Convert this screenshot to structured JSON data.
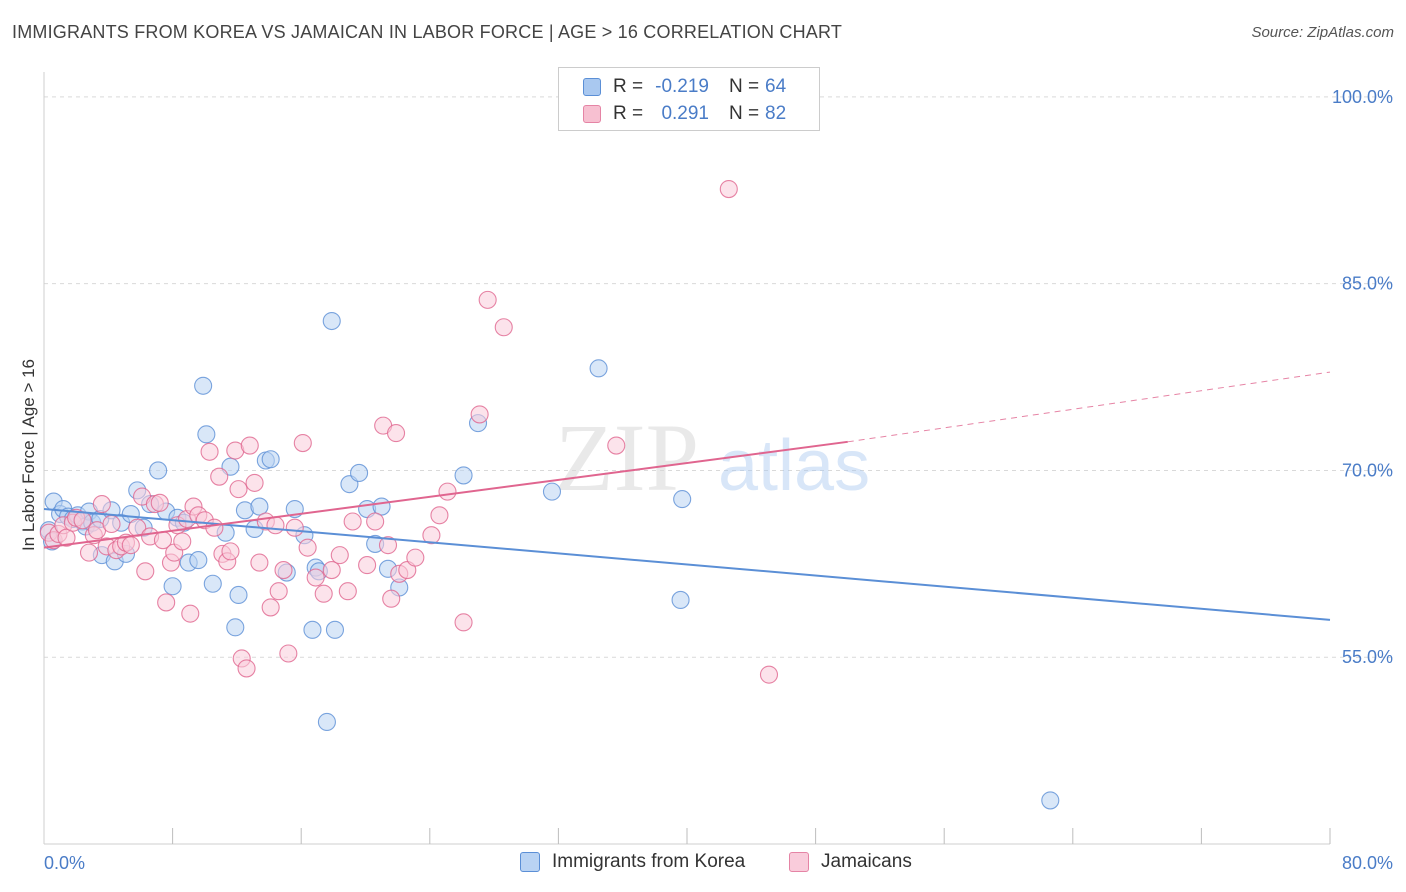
{
  "title": "IMMIGRANTS FROM KOREA VS JAMAICAN IN LABOR FORCE | AGE > 16 CORRELATION CHART",
  "source": "Source: ZipAtlas.com",
  "watermark": {
    "zip": "ZIP",
    "atlas": "atlas"
  },
  "legend": {
    "rows": [
      {
        "r_label": "R =",
        "r_value": "-0.219",
        "n_label": "N =",
        "n_value": "64",
        "fill": "#a9c8f0",
        "stroke": "#5b8fd6"
      },
      {
        "r_label": "R =",
        "r_value": "0.291",
        "n_label": "N =",
        "n_value": "82",
        "fill": "#f7c0d1",
        "stroke": "#e584a5"
      }
    ]
  },
  "bottom_legend": [
    {
      "label": "Immigrants from Korea",
      "fill": "#b9d3f3",
      "stroke": "#5b8fd6"
    },
    {
      "label": "Jamaicans",
      "fill": "#f9ccdb",
      "stroke": "#e584a5"
    }
  ],
  "chart_data": {
    "type": "scatter",
    "title": "IMMIGRANTS FROM KOREA VS JAMAICAN IN LABOR FORCE | AGE > 16 CORRELATION CHART",
    "xlabel": "",
    "ylabel": "In Labor Force | Age > 16",
    "xlim": [
      0,
      80
    ],
    "ylim": [
      40,
      102
    ],
    "x_tick_labels": [
      {
        "value": 0,
        "label": "0.0%"
      },
      {
        "value": 80,
        "label": "80.0%"
      }
    ],
    "y_tick_labels": [
      {
        "value": 100,
        "label": "100.0%"
      },
      {
        "value": 85,
        "label": "85.0%"
      },
      {
        "value": 70,
        "label": "70.0%"
      },
      {
        "value": 55,
        "label": "55.0%"
      }
    ],
    "y_gridlines": [
      100,
      85,
      70,
      55
    ],
    "x_minor_ticks": [
      8,
      16,
      24,
      32,
      40,
      48,
      56,
      64,
      72,
      80
    ],
    "grid": true,
    "legend_position": "top-center",
    "series": [
      {
        "name": "Immigrants from Korea",
        "color": "#5b8fd6",
        "fill": "#b9d3f3",
        "trend": {
          "x": [
            0,
            80
          ],
          "y": [
            66.9,
            58.0
          ],
          "dashed_from": null
        },
        "points": [
          [
            0.3,
            65.2
          ],
          [
            0.5,
            64.3
          ],
          [
            0.6,
            67.5
          ],
          [
            1.0,
            66.5
          ],
          [
            1.2,
            66.9
          ],
          [
            1.5,
            66.3
          ],
          [
            1.8,
            66.1
          ],
          [
            2.1,
            66.4
          ],
          [
            2.4,
            65.9
          ],
          [
            2.6,
            65.5
          ],
          [
            2.8,
            66.7
          ],
          [
            3.0,
            65.8
          ],
          [
            3.5,
            66.1
          ],
          [
            3.6,
            63.2
          ],
          [
            4.2,
            66.8
          ],
          [
            4.4,
            62.7
          ],
          [
            4.8,
            65.8
          ],
          [
            5.1,
            63.3
          ],
          [
            5.4,
            66.5
          ],
          [
            5.8,
            68.4
          ],
          [
            6.2,
            65.4
          ],
          [
            6.6,
            67.3
          ],
          [
            7.1,
            70.0
          ],
          [
            7.6,
            66.7
          ],
          [
            8.0,
            60.7
          ],
          [
            8.3,
            66.2
          ],
          [
            8.7,
            65.8
          ],
          [
            9.0,
            62.6
          ],
          [
            9.6,
            62.8
          ],
          [
            9.9,
            76.8
          ],
          [
            10.1,
            72.9
          ],
          [
            10.5,
            60.9
          ],
          [
            11.3,
            65.0
          ],
          [
            11.6,
            70.3
          ],
          [
            11.9,
            57.4
          ],
          [
            12.1,
            60.0
          ],
          [
            12.5,
            66.8
          ],
          [
            13.1,
            65.3
          ],
          [
            13.4,
            67.1
          ],
          [
            13.8,
            70.8
          ],
          [
            14.1,
            70.9
          ],
          [
            15.1,
            61.8
          ],
          [
            15.6,
            66.9
          ],
          [
            16.2,
            64.8
          ],
          [
            16.7,
            57.2
          ],
          [
            16.9,
            62.2
          ],
          [
            17.1,
            61.9
          ],
          [
            17.6,
            49.8
          ],
          [
            17.9,
            82.0
          ],
          [
            18.1,
            57.2
          ],
          [
            19.0,
            68.9
          ],
          [
            19.6,
            69.8
          ],
          [
            20.1,
            66.9
          ],
          [
            20.6,
            64.1
          ],
          [
            21.0,
            67.1
          ],
          [
            21.4,
            62.1
          ],
          [
            22.1,
            60.6
          ],
          [
            26.1,
            69.6
          ],
          [
            27.0,
            73.8
          ],
          [
            31.6,
            68.3
          ],
          [
            34.5,
            78.2
          ],
          [
            39.7,
            67.7
          ],
          [
            39.6,
            59.6
          ],
          [
            62.6,
            43.5
          ]
        ]
      },
      {
        "name": "Jamaicans",
        "color": "#e0658f",
        "fill": "#f9ccdb",
        "trend": {
          "x": [
            0,
            50,
            80
          ],
          "y": [
            63.8,
            72.3,
            77.9
          ],
          "dashed_from": 50
        },
        "points": [
          [
            0.3,
            65.0
          ],
          [
            0.6,
            64.4
          ],
          [
            0.9,
            64.9
          ],
          [
            1.2,
            65.6
          ],
          [
            1.4,
            64.6
          ],
          [
            1.8,
            65.8
          ],
          [
            2.0,
            66.2
          ],
          [
            2.4,
            66.0
          ],
          [
            2.8,
            63.4
          ],
          [
            3.1,
            64.8
          ],
          [
            3.3,
            65.2
          ],
          [
            3.6,
            67.3
          ],
          [
            3.9,
            63.9
          ],
          [
            4.2,
            65.7
          ],
          [
            4.5,
            63.6
          ],
          [
            4.8,
            63.9
          ],
          [
            5.1,
            64.2
          ],
          [
            5.4,
            64.0
          ],
          [
            5.8,
            65.4
          ],
          [
            6.1,
            67.9
          ],
          [
            6.3,
            61.9
          ],
          [
            6.6,
            64.7
          ],
          [
            6.9,
            67.3
          ],
          [
            7.2,
            67.4
          ],
          [
            7.4,
            64.4
          ],
          [
            7.6,
            59.4
          ],
          [
            7.9,
            62.6
          ],
          [
            8.1,
            63.4
          ],
          [
            8.3,
            65.6
          ],
          [
            8.6,
            64.3
          ],
          [
            8.9,
            66.1
          ],
          [
            9.1,
            58.5
          ],
          [
            9.3,
            67.1
          ],
          [
            9.6,
            66.4
          ],
          [
            10.0,
            66.0
          ],
          [
            10.3,
            71.5
          ],
          [
            10.6,
            65.4
          ],
          [
            10.9,
            69.5
          ],
          [
            11.1,
            63.3
          ],
          [
            11.4,
            62.7
          ],
          [
            11.6,
            63.5
          ],
          [
            11.9,
            71.6
          ],
          [
            12.1,
            68.5
          ],
          [
            12.3,
            54.9
          ],
          [
            12.6,
            54.1
          ],
          [
            12.8,
            72.0
          ],
          [
            13.1,
            69.0
          ],
          [
            13.4,
            62.6
          ],
          [
            13.8,
            65.9
          ],
          [
            14.1,
            59.0
          ],
          [
            14.4,
            65.6
          ],
          [
            14.6,
            60.3
          ],
          [
            14.9,
            62.0
          ],
          [
            15.2,
            55.3
          ],
          [
            15.6,
            65.4
          ],
          [
            16.1,
            72.2
          ],
          [
            16.4,
            63.8
          ],
          [
            16.9,
            61.4
          ],
          [
            17.4,
            60.1
          ],
          [
            17.9,
            62.0
          ],
          [
            18.4,
            63.2
          ],
          [
            18.9,
            60.3
          ],
          [
            19.2,
            65.9
          ],
          [
            20.1,
            62.4
          ],
          [
            20.6,
            65.9
          ],
          [
            21.1,
            73.6
          ],
          [
            21.4,
            64.0
          ],
          [
            21.6,
            59.7
          ],
          [
            21.9,
            73.0
          ],
          [
            22.1,
            61.7
          ],
          [
            22.6,
            62.0
          ],
          [
            23.1,
            63.0
          ],
          [
            24.1,
            64.8
          ],
          [
            24.6,
            66.4
          ],
          [
            25.1,
            68.3
          ],
          [
            26.1,
            57.8
          ],
          [
            27.1,
            74.5
          ],
          [
            27.6,
            83.7
          ],
          [
            28.6,
            81.5
          ],
          [
            35.6,
            72.0
          ],
          [
            42.6,
            92.6
          ],
          [
            45.1,
            53.6
          ]
        ]
      }
    ]
  }
}
